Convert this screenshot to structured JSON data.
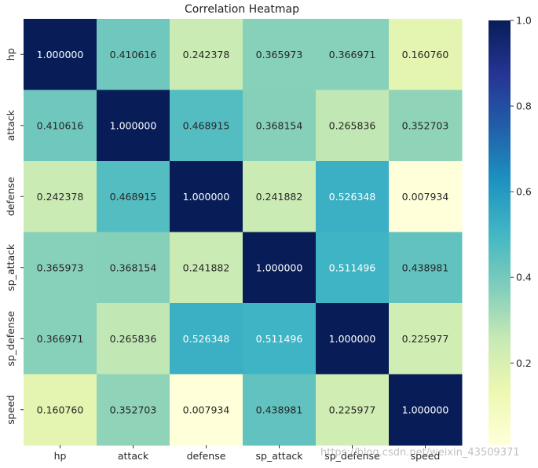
{
  "chart_data": {
    "type": "heatmap",
    "title": "Correlation Heatmap",
    "xlabel": "",
    "ylabel": "",
    "x_categories": [
      "hp",
      "attack",
      "defense",
      "sp_attack",
      "sp_defense",
      "speed"
    ],
    "y_categories": [
      "hp",
      "attack",
      "defense",
      "sp_attack",
      "sp_defense",
      "speed"
    ],
    "values": [
      [
        1.0,
        0.410616,
        0.242378,
        0.365973,
        0.366971,
        0.16076
      ],
      [
        0.410616,
        1.0,
        0.468915,
        0.368154,
        0.265836,
        0.352703
      ],
      [
        0.242378,
        0.468915,
        1.0,
        0.241882,
        0.526348,
        0.007934
      ],
      [
        0.365973,
        0.368154,
        0.241882,
        1.0,
        0.511496,
        0.438981
      ],
      [
        0.366971,
        0.265836,
        0.526348,
        0.511496,
        1.0,
        0.225977
      ],
      [
        0.16076,
        0.352703,
        0.007934,
        0.438981,
        0.225977,
        1.0
      ]
    ],
    "annotations": [
      [
        "1.000000",
        "0.410616",
        "0.242378",
        "0.365973",
        "0.366971",
        "0.160760"
      ],
      [
        "0.410616",
        "1.000000",
        "0.468915",
        "0.368154",
        "0.265836",
        "0.352703"
      ],
      [
        "0.242378",
        "0.468915",
        "1.000000",
        "0.241882",
        "0.526348",
        "0.007934"
      ],
      [
        "0.365973",
        "0.368154",
        "0.241882",
        "1.000000",
        "0.511496",
        "0.438981"
      ],
      [
        "0.366971",
        "0.265836",
        "0.526348",
        "0.511496",
        "1.000000",
        "0.225977"
      ],
      [
        "0.160760",
        "0.352703",
        "0.007934",
        "0.438981",
        "0.225977",
        "1.000000"
      ]
    ],
    "colormap": "YlGnBu",
    "colormap_stops": [
      "#ffffd9",
      "#edf8b1",
      "#c7e9b4",
      "#7fcdbb",
      "#41b6c4",
      "#1d91c0",
      "#225ea8",
      "#253494",
      "#081d58"
    ],
    "vmin": 0.007934,
    "vmax": 1.0,
    "colorbar": {
      "ticks": [
        "0.2",
        "0.4",
        "0.6",
        "0.8",
        "1.0"
      ],
      "tick_values": [
        0.2,
        0.4,
        0.6,
        0.8,
        1.0
      ]
    },
    "grid": false,
    "legend": "colorbar-right"
  },
  "watermark": "https://blog.csdn.net/weixin_43509371"
}
